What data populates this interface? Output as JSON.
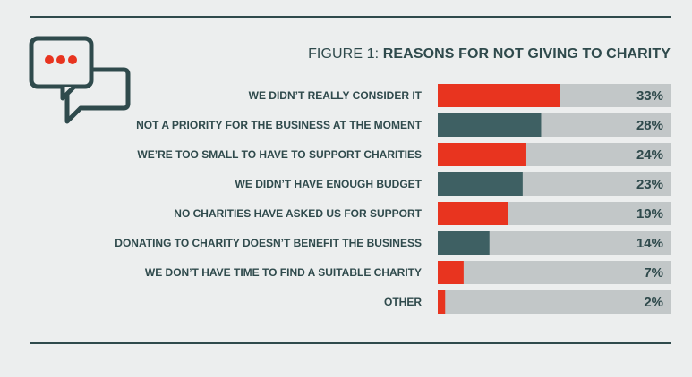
{
  "figure": {
    "prefix": "FIGURE 1:",
    "title": "REASONS FOR NOT GIVING TO CHARITY"
  },
  "icon": "speech-bubbles-icon",
  "colors": {
    "accent_red": "#e8341f",
    "accent_teal": "#3e6063",
    "track": "#c2c7c8",
    "text": "#2f4a4c"
  },
  "chart_data": {
    "type": "bar",
    "orientation": "horizontal",
    "title": "REASONS FOR NOT GIVING TO CHARITY",
    "categories": [
      "WE DIDN’T REALLY CONSIDER IT",
      "NOT A PRIORITY FOR THE BUSINESS AT THE MOMENT",
      "WE’RE TOO SMALL TO HAVE TO SUPPORT CHARITIES",
      "WE DIDN’T HAVE ENOUGH BUDGET",
      "NO CHARITIES HAVE ASKED US FOR SUPPORT",
      "DONATING TO CHARITY DOESN’T BENEFIT THE BUSINESS",
      "WE DON’T HAVE TIME TO FIND A SUITABLE CHARITY",
      "OTHER"
    ],
    "values": [
      33,
      28,
      24,
      23,
      19,
      14,
      7,
      2
    ],
    "value_labels": [
      "33%",
      "28%",
      "24%",
      "23%",
      "19%",
      "14%",
      "7%",
      "2%"
    ],
    "bar_colors": [
      "#e8341f",
      "#3e6063",
      "#e8341f",
      "#3e6063",
      "#e8341f",
      "#3e6063",
      "#e8341f",
      "#e8341f"
    ],
    "xlim": [
      0,
      100
    ],
    "grid": false,
    "legend": "none"
  }
}
